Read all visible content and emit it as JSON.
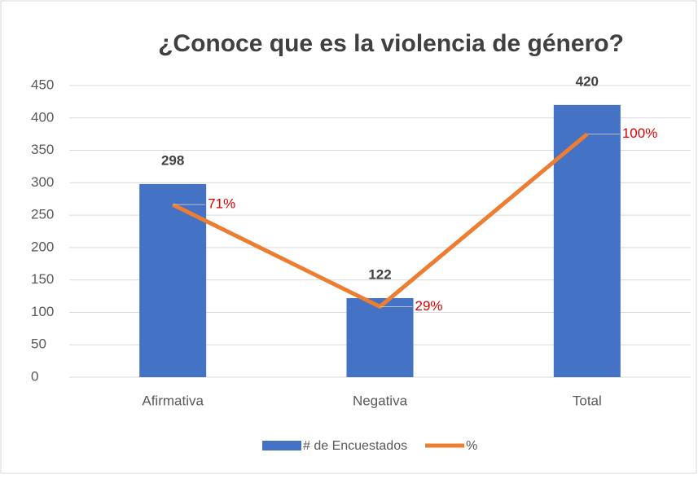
{
  "chart_data": {
    "type": "bar_line",
    "title": "¿Conoce que es la violencia de género?",
    "categories": [
      "Afirmativa",
      "Negativa",
      "Total"
    ],
    "series": [
      {
        "name": "# de Encuestados",
        "color": "#4472c4",
        "type": "bar",
        "values": [
          298,
          122,
          420
        ]
      },
      {
        "name": "%",
        "color": "#ed7d31",
        "type": "line",
        "axis": "y2",
        "values": [
          71,
          29,
          100
        ],
        "value_labels": [
          "71%",
          "29%",
          "100%"
        ]
      }
    ],
    "ylim": [
      0,
      450
    ],
    "yticks": [
      0,
      50,
      100,
      150,
      200,
      250,
      300,
      350,
      400,
      450
    ],
    "y2lim": [
      0,
      120
    ],
    "grid": true,
    "legend": "bottom"
  }
}
